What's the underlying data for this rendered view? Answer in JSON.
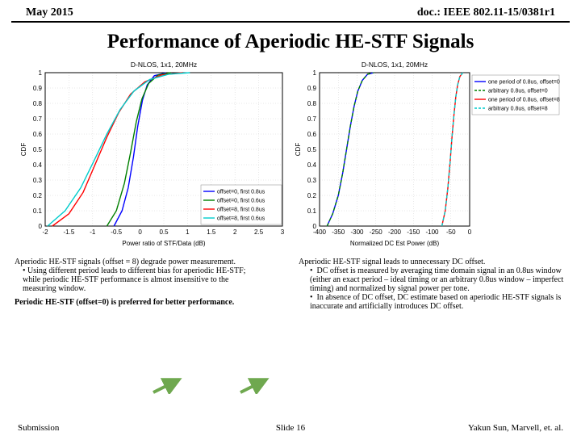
{
  "header": {
    "left": "May 2015",
    "right": "doc.: IEEE 802.11-15/0381r1"
  },
  "title": "Performance of Aperiodic HE-STF Signals",
  "chart1": {
    "title": "D-NLOS, 1x1, 20MHz",
    "xlabel": "Power ratio of STF/Data (dB)",
    "ylabel": "CDF",
    "xlim": [
      -2,
      3
    ],
    "xticks": [
      -2,
      -1.5,
      -1,
      -0.5,
      0,
      0.5,
      1,
      1.5,
      2,
      2.5,
      3
    ],
    "ylim": [
      0,
      1
    ],
    "yticks": [
      0,
      0.1,
      0.2,
      0.3,
      0.4,
      0.5,
      0.6,
      0.7,
      0.8,
      0.9,
      1
    ],
    "grid_color": "#d0d0d0",
    "legend": [
      {
        "label": "offset=0, first 0.8us",
        "color": "#0000ff",
        "dash": false
      },
      {
        "label": "offset=0, first 0.6us",
        "color": "#008000",
        "dash": false
      },
      {
        "label": "offset=8, first 0.8us",
        "color": "#ff0000",
        "dash": false
      },
      {
        "label": "offset=8, first 0.6us",
        "color": "#00cccc",
        "dash": false
      }
    ],
    "series": [
      {
        "color": "#0000ff",
        "pts": [
          [
            -0.55,
            0
          ],
          [
            -0.38,
            0.1
          ],
          [
            -0.25,
            0.25
          ],
          [
            -0.14,
            0.45
          ],
          [
            -0.05,
            0.65
          ],
          [
            0.05,
            0.82
          ],
          [
            0.15,
            0.92
          ],
          [
            0.3,
            0.98
          ],
          [
            0.55,
            1
          ]
        ]
      },
      {
        "color": "#008000",
        "pts": [
          [
            -0.7,
            0
          ],
          [
            -0.5,
            0.1
          ],
          [
            -0.33,
            0.28
          ],
          [
            -0.2,
            0.48
          ],
          [
            -0.08,
            0.68
          ],
          [
            0.04,
            0.83
          ],
          [
            0.18,
            0.93
          ],
          [
            0.38,
            0.985
          ],
          [
            0.65,
            1
          ]
        ]
      },
      {
        "color": "#ff0000",
        "pts": [
          [
            -1.85,
            0
          ],
          [
            -1.5,
            0.08
          ],
          [
            -1.2,
            0.22
          ],
          [
            -0.95,
            0.4
          ],
          [
            -0.7,
            0.58
          ],
          [
            -0.45,
            0.74
          ],
          [
            -0.2,
            0.86
          ],
          [
            0.1,
            0.94
          ],
          [
            0.45,
            0.985
          ],
          [
            0.9,
            1
          ]
        ]
      },
      {
        "color": "#00cccc",
        "pts": [
          [
            -1.95,
            0
          ],
          [
            -1.58,
            0.1
          ],
          [
            -1.25,
            0.25
          ],
          [
            -0.98,
            0.42
          ],
          [
            -0.7,
            0.6
          ],
          [
            -0.42,
            0.76
          ],
          [
            -0.13,
            0.88
          ],
          [
            0.2,
            0.955
          ],
          [
            0.6,
            0.99
          ],
          [
            1.05,
            1
          ]
        ]
      }
    ]
  },
  "chart2": {
    "title": "D-NLOS, 1x1, 20MHz",
    "xlabel": "Normalized DC Est Power (dB)",
    "ylabel": "CDF",
    "xlim": [
      -400,
      0
    ],
    "xticks": [
      -400,
      -350,
      -300,
      -250,
      -200,
      -150,
      -100,
      -50,
      0
    ],
    "ylim": [
      0,
      1
    ],
    "yticks": [
      0,
      0.1,
      0.2,
      0.3,
      0.4,
      0.5,
      0.6,
      0.7,
      0.8,
      0.9,
      1
    ],
    "grid_color": "#d0d0d0",
    "legend": [
      {
        "label": "one period of 0.8us, offset=0",
        "color": "#0000ff",
        "dash": false
      },
      {
        "label": "arbitrary 0.8us, offset=0",
        "color": "#008000",
        "dash": true
      },
      {
        "label": "one period of 0.8us, offset=8",
        "color": "#ff0000",
        "dash": false
      },
      {
        "label": "arbitrary 0.8us, offset=8",
        "color": "#00cccc",
        "dash": true
      }
    ],
    "series": [
      {
        "color": "#0000ff",
        "dash": false,
        "pts": [
          [
            -380,
            0
          ],
          [
            -365,
            0.08
          ],
          [
            -350,
            0.2
          ],
          [
            -338,
            0.35
          ],
          [
            -328,
            0.5
          ],
          [
            -318,
            0.65
          ],
          [
            -308,
            0.78
          ],
          [
            -298,
            0.88
          ],
          [
            -286,
            0.95
          ],
          [
            -272,
            0.99
          ],
          [
            -255,
            1
          ]
        ]
      },
      {
        "color": "#008000",
        "dash": true,
        "pts": [
          [
            -380,
            0
          ],
          [
            -365,
            0.08
          ],
          [
            -350,
            0.2
          ],
          [
            -338,
            0.35
          ],
          [
            -328,
            0.5
          ],
          [
            -318,
            0.65
          ],
          [
            -308,
            0.78
          ],
          [
            -298,
            0.88
          ],
          [
            -286,
            0.95
          ],
          [
            -272,
            0.99
          ],
          [
            -255,
            1
          ]
        ]
      },
      {
        "color": "#ff0000",
        "dash": false,
        "pts": [
          [
            -74,
            0
          ],
          [
            -65,
            0.1
          ],
          [
            -58,
            0.25
          ],
          [
            -52,
            0.42
          ],
          [
            -47,
            0.58
          ],
          [
            -42,
            0.72
          ],
          [
            -37,
            0.84
          ],
          [
            -32,
            0.92
          ],
          [
            -26,
            0.975
          ],
          [
            -18,
            1
          ]
        ]
      },
      {
        "color": "#00cccc",
        "dash": true,
        "pts": [
          [
            -74,
            0
          ],
          [
            -65,
            0.1
          ],
          [
            -58,
            0.25
          ],
          [
            -52,
            0.42
          ],
          [
            -47,
            0.58
          ],
          [
            -42,
            0.72
          ],
          [
            -37,
            0.84
          ],
          [
            -32,
            0.92
          ],
          [
            -26,
            0.975
          ],
          [
            -18,
            1
          ]
        ]
      }
    ]
  },
  "text": {
    "left_p1": "Aperiodic HE-STF signals (offset = 8) degrade power measurement.",
    "left_b1": "Using different period leads to different bias for aperiodic HE-STF; while periodic HE-STF performance is almost insensitive to the measuring window.",
    "left_bold": "Periodic HE-STF (offset=0) is preferred for better performance.",
    "right_p1": "Aperiodic HE-STF signal leads to unnecessary DC offset.",
    "right_b1": "DC offset is measured by averaging time domain signal in an 0.8us window (either an exact period – ideal timing or an arbitrary 0.8us window – imperfect timing) and normalized by signal power per tone.",
    "right_b2": "In absence of DC offset, DC estimate based on aperiodic HE-STF signals is inaccurate and artificially introduces DC offset."
  },
  "footer": {
    "left": "Submission",
    "center": "Slide 16",
    "right": "Yakun Sun,  Marvell, et. al."
  },
  "arrow_color": "#6fa84f"
}
